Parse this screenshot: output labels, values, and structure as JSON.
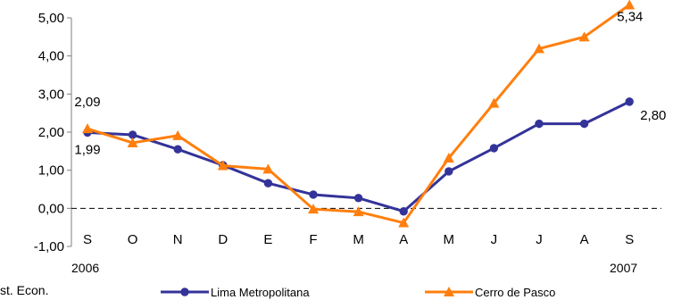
{
  "chart_data": {
    "type": "line",
    "categories": [
      "S",
      "O",
      "N",
      "D",
      "E",
      "F",
      "M",
      "A",
      "M",
      "J",
      "J",
      "A",
      "S"
    ],
    "year_labels": {
      "start": "2006",
      "end": "2007"
    },
    "ylim": [
      -1,
      5
    ],
    "yticks": [
      "5,00",
      "4,00",
      "3,00",
      "2,00",
      "1,00",
      "0,00",
      "-1,00"
    ],
    "zero_line": "dashed",
    "grid": false,
    "legend_position": "bottom",
    "series": [
      {
        "name": "Lima Metropolitana",
        "color": "#333399",
        "marker": "circle",
        "values": [
          1.99,
          1.93,
          1.55,
          1.13,
          0.66,
          0.36,
          0.27,
          -0.08,
          0.97,
          1.58,
          2.22,
          2.22,
          2.8
        ],
        "labels": [
          {
            "index": 0,
            "text": "1,99"
          },
          {
            "index": 12,
            "text": "2,80"
          }
        ]
      },
      {
        "name": "Cerro de Pasco",
        "color": "#FF7F0E",
        "marker": "triangle",
        "values": [
          2.09,
          1.72,
          1.91,
          1.12,
          1.03,
          -0.02,
          -0.09,
          -0.38,
          1.32,
          2.76,
          4.19,
          4.5,
          5.34
        ],
        "labels": [
          {
            "index": 0,
            "text": "2,09"
          },
          {
            "index": 12,
            "text": "5,34"
          }
        ]
      }
    ]
  },
  "footnote_fragment": "st. Econ."
}
